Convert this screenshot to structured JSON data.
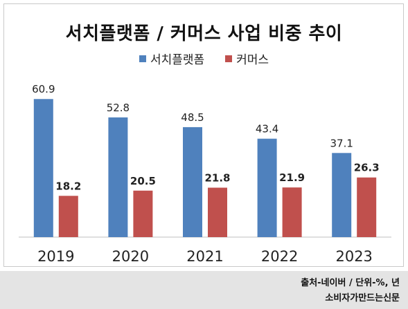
{
  "chart_data": {
    "type": "bar",
    "title": "서치플랫폼 / 커머스 사업 비중 추이",
    "categories": [
      "2019",
      "2020",
      "2021",
      "2022",
      "2023"
    ],
    "series": [
      {
        "name": "서치플랫폼",
        "color": "#4f81bd",
        "values": [
          60.9,
          52.8,
          48.5,
          43.4,
          37.1
        ]
      },
      {
        "name": "커머스",
        "color": "#c0504d",
        "values": [
          18.2,
          20.5,
          21.8,
          21.9,
          26.3
        ]
      }
    ],
    "xlabel": "",
    "ylabel": "",
    "ylim": [
      0,
      70
    ],
    "grid": false,
    "legend": "top-center"
  },
  "footer": {
    "source": "출처-네이버 / 단위-%, 년",
    "credit": "소비자가만드는신문"
  }
}
